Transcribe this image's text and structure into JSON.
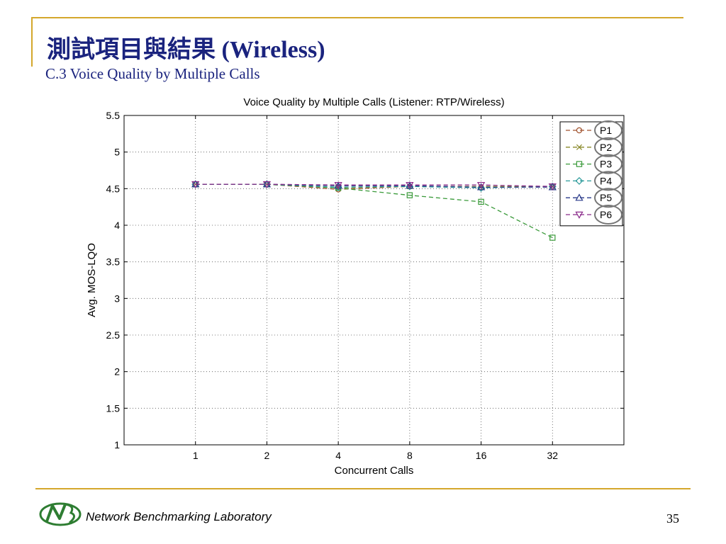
{
  "slide": {
    "title": "測試項目與結果 (Wireless)",
    "subtitle": "C.3 Voice Quality by Multiple Calls",
    "footer_org": "Network Benchmarking Laboratory",
    "page_number": "35",
    "accent_color": "#d4a72c",
    "title_color": "#1a237e",
    "logo_icon": "nbl-logo-icon"
  },
  "chart_data": {
    "type": "line",
    "title": "Voice Quality by Multiple Calls (Listener: RTP/Wireless)",
    "xlabel": "Concurrent Calls",
    "ylabel": "Avg. MOS-LQO",
    "categories": [
      "1",
      "2",
      "4",
      "8",
      "16",
      "32"
    ],
    "ylim": [
      1,
      5.5
    ],
    "yticks": [
      "1",
      "1.5",
      "2",
      "2.5",
      "3",
      "3.5",
      "4",
      "4.5",
      "5",
      "5.5"
    ],
    "grid": true,
    "legend_position": "top-right",
    "series": [
      {
        "name": "P1",
        "color": "#a0522d",
        "marker": "circle",
        "values": [
          4.56,
          4.56,
          4.49,
          4.53,
          4.52,
          4.53
        ]
      },
      {
        "name": "P2",
        "color": "#8a8a2a",
        "marker": "x",
        "values": [
          4.56,
          4.56,
          4.51,
          4.53,
          4.53,
          4.53
        ]
      },
      {
        "name": "P3",
        "color": "#3a9a3a",
        "marker": "square",
        "values": [
          4.56,
          4.56,
          4.51,
          4.41,
          4.32,
          3.83
        ]
      },
      {
        "name": "P4",
        "color": "#2a9a9a",
        "marker": "diamond",
        "values": [
          4.56,
          4.56,
          4.52,
          4.53,
          4.51,
          4.53
        ]
      },
      {
        "name": "P5",
        "color": "#2a3a8a",
        "marker": "triangle-up",
        "values": [
          4.56,
          4.56,
          4.54,
          4.54,
          4.52,
          4.52
        ]
      },
      {
        "name": "P6",
        "color": "#8a2a8a",
        "marker": "triangle-down",
        "values": [
          4.56,
          4.56,
          4.55,
          4.55,
          4.55,
          4.53
        ]
      }
    ]
  }
}
